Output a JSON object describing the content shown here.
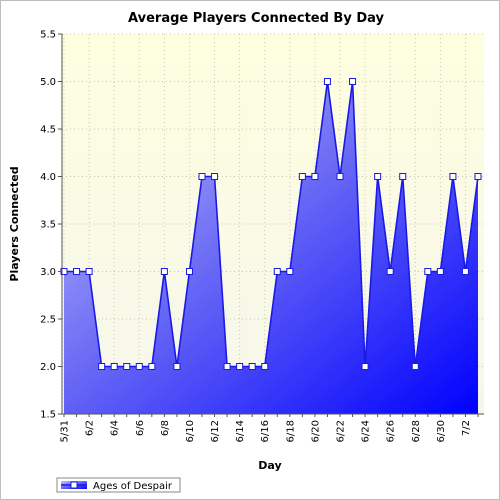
{
  "chart_data": {
    "type": "area",
    "title": "Average Players Connected By Day",
    "xlabel": "Day",
    "ylabel": "Players Connected",
    "ylim": [
      1.5,
      5.5
    ],
    "yticks": [
      "1.5",
      "2.0",
      "2.5",
      "3.0",
      "3.5",
      "4.0",
      "4.5",
      "5.0",
      "5.5"
    ],
    "grid": true,
    "legend_placement": "bottom-left",
    "x": [
      "5/31",
      "6/1",
      "6/2",
      "6/3",
      "6/4",
      "6/5",
      "6/6",
      "6/7",
      "6/8",
      "6/9",
      "6/10",
      "6/11",
      "6/12",
      "6/13",
      "6/14",
      "6/15",
      "6/16",
      "6/17",
      "6/18",
      "6/19",
      "6/20",
      "6/21",
      "6/22",
      "6/23",
      "6/24",
      "6/25",
      "6/26",
      "6/27",
      "6/28",
      "6/29",
      "6/30",
      "7/1",
      "7/2",
      "7/3"
    ],
    "xtick_labels": [
      "5/31",
      "6/2",
      "6/4",
      "6/6",
      "6/8",
      "6/10",
      "6/12",
      "6/14",
      "6/16",
      "6/18",
      "6/20",
      "6/22",
      "6/24",
      "6/26",
      "6/28",
      "6/30",
      "7/2"
    ],
    "series": [
      {
        "name": "Ages of Despair",
        "values": [
          3,
          3,
          3,
          2,
          2,
          2,
          2,
          2,
          3,
          2,
          3,
          4,
          4,
          2,
          2,
          2,
          2,
          3,
          3,
          4,
          4,
          5,
          4,
          5,
          2,
          4,
          3,
          4,
          2,
          3,
          3,
          4,
          3,
          4
        ]
      }
    ],
    "colors": {
      "plot_bg_top": "#fefee0",
      "plot_bg_bottom": "#f6f6ec",
      "area_light": "#c8c8f8",
      "area_dark": "#0000ff",
      "line": "#1a1ae6",
      "marker_fill": "#ffffff"
    }
  }
}
